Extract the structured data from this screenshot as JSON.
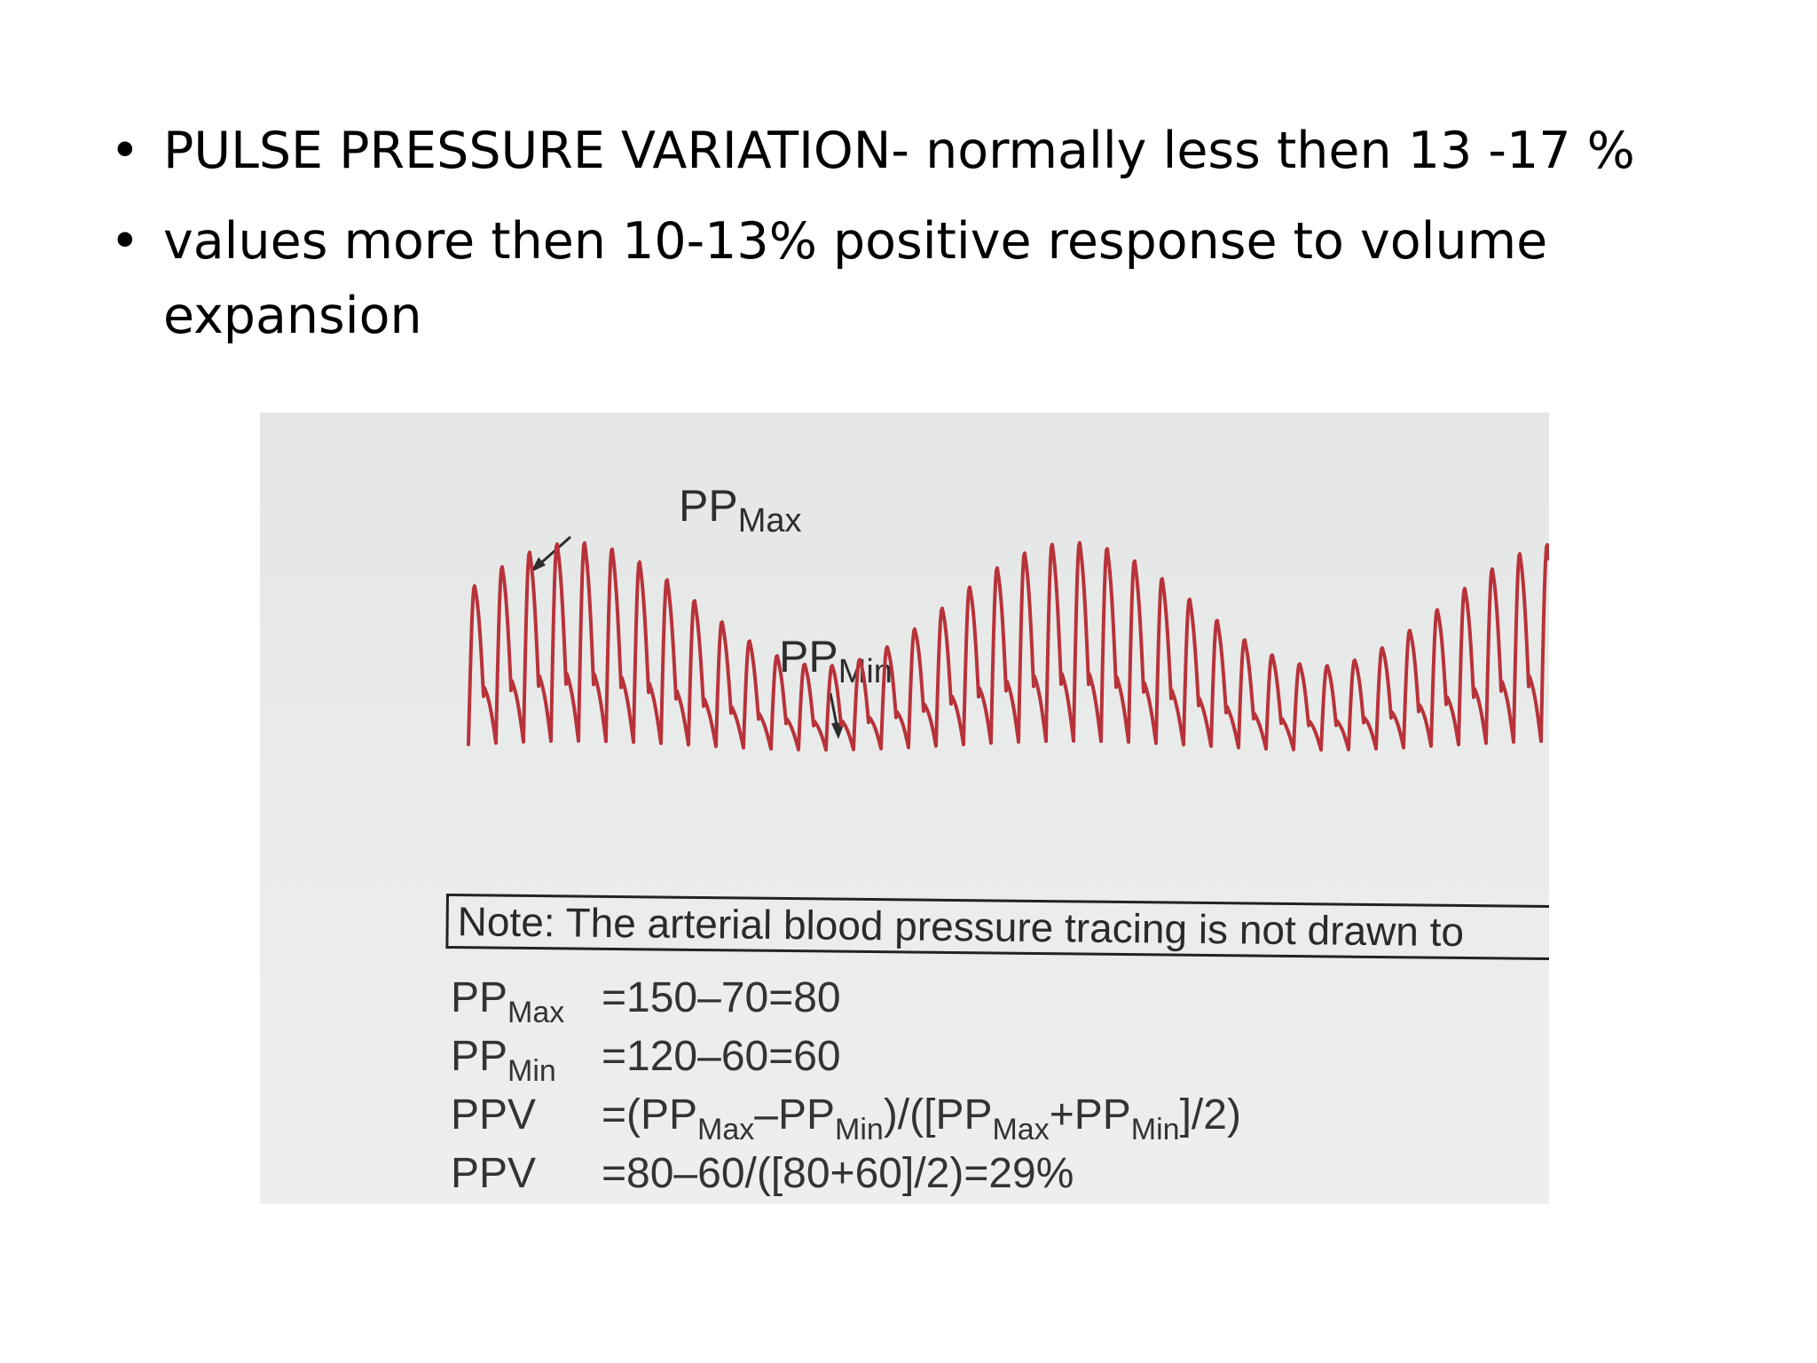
{
  "bullets": [
    "PULSE PRESSURE VARIATION- normally less then 13 -17 %",
    "values more then 10-13% positive response to volume expansion"
  ],
  "bullet_symbol": "•",
  "figure": {
    "label_max_main": "PP",
    "label_max_sub": "Max",
    "label_min_main": "PP",
    "label_min_sub": "Min",
    "note": "Note: The arterial blood pressure tracing is not drawn to",
    "trace_color": "#b8323a",
    "formulas": {
      "row1": {
        "lhs_main": "PP",
        "lhs_sub": "Max",
        "rhs": "=150–70=80"
      },
      "row2": {
        "lhs_main": "PP",
        "lhs_sub": "Min",
        "rhs": "=120–60=60"
      },
      "row3": {
        "lhs": "PPV",
        "p1": "=(PP",
        "s1": "Max",
        "p2": "–PP",
        "s2": "Min",
        "p3": ")/([PP",
        "s3": "Max",
        "p4": "+PP",
        "s4": "Min",
        "p5": "]/2)"
      },
      "row4": {
        "lhs": "PPV",
        "rhs": "=80–60/([80+60]/2)=29%"
      }
    }
  }
}
